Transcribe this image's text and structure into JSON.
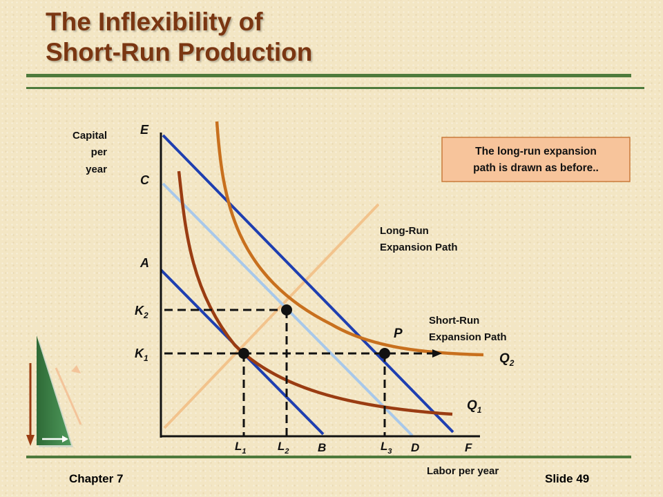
{
  "slide": {
    "title_line1": "The Inflexibility of",
    "title_line2": "Short-Run Production",
    "footer_left": "Chapter 7",
    "footer_right": "Slide 49"
  },
  "axes": {
    "y_label_lines": [
      "Capital",
      "per",
      "year"
    ],
    "x_label": "Labor per year"
  },
  "y_points": {
    "E": "E",
    "C": "C",
    "A": "A",
    "K2": {
      "main": "K",
      "sub": "2"
    },
    "K1": {
      "main": "K",
      "sub": "1"
    }
  },
  "x_points": {
    "L1": {
      "main": "L",
      "sub": "1"
    },
    "L2": {
      "main": "L",
      "sub": "2"
    },
    "L3": {
      "main": "L",
      "sub": "3"
    },
    "B": "B",
    "D": "D",
    "F": "F"
  },
  "curves": {
    "Q2": {
      "main": "Q",
      "sub": "2"
    },
    "Q1": {
      "main": "Q",
      "sub": "1"
    }
  },
  "annotations": {
    "long_run_lines": [
      "Long-Run",
      "Expansion Path"
    ],
    "short_run_lines": [
      "Short-Run",
      "Expansion Path"
    ],
    "point_P": "P",
    "callout_lines": [
      "The long-run expansion",
      "path is drawn as before.."
    ]
  },
  "colors": {
    "title": "#7a3612",
    "rule": "#4e7a3c",
    "isocost_dark": "#1f3fb0",
    "isocost_light": "#a8c8ea",
    "isoquant_Q1": "#9a3c12",
    "isoquant_Q2": "#c8701e",
    "long_run_path": "#f2c38c",
    "callout_fill": "#f7c49b",
    "callout_border": "#c97a3a"
  }
}
